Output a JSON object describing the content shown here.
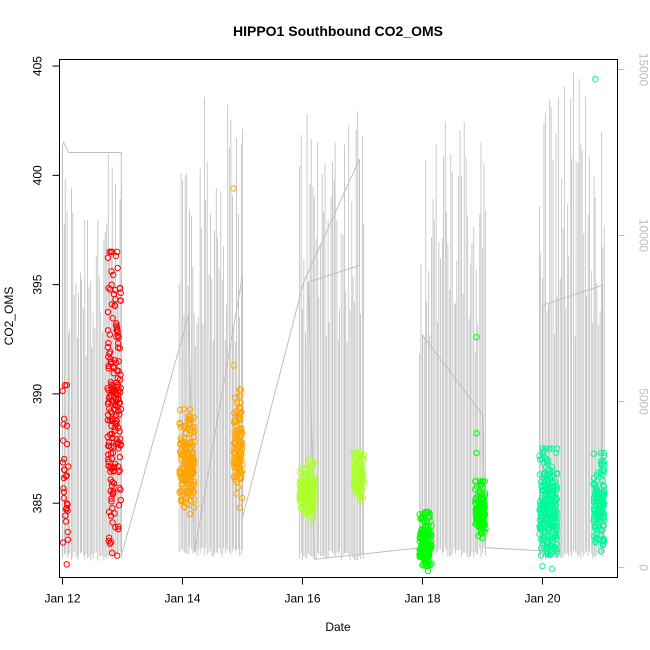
{
  "chart_data": {
    "type": "scatter",
    "title": "HIPPO1 Southbound CO2_OMS",
    "xlabel": "Date",
    "ylabel": "CO2_OMS",
    "x_unit": "days in January 2009 (tick labels Jan 12 ... Jan 20)",
    "xlim": [
      11.95,
      21.25
    ],
    "ylim": [
      381.6,
      405.3
    ],
    "x_ticks": [
      {
        "value": 12,
        "label": "Jan 12"
      },
      {
        "value": 14,
        "label": "Jan 14"
      },
      {
        "value": 16,
        "label": "Jan 16"
      },
      {
        "value": 18,
        "label": "Jan 18"
      },
      {
        "value": 20,
        "label": "Jan 20"
      }
    ],
    "y_ticks": [
      385,
      390,
      395,
      400,
      405
    ],
    "right_axis": {
      "label": "",
      "ylim": [
        -300,
        15300
      ],
      "ticks": [
        0,
        5000,
        10000,
        15000
      ],
      "color": "#bebebe"
    },
    "grid": false,
    "legend": "none",
    "series": [
      {
        "color": "#ff0000",
        "clusters": [
          {
            "x": [
              12.0,
              12.1
            ],
            "y_range": [
              382.2,
              390.4
            ],
            "density": 0.35
          },
          {
            "x": [
              12.75,
              12.98
            ],
            "y_range": [
              382.6,
              396.5
            ],
            "density": 1.0
          }
        ],
        "outliers": []
      },
      {
        "color": "#ffa500",
        "clusters": [
          {
            "x": [
              13.95,
              14.2
            ],
            "y_range": [
              384.5,
              389.3
            ],
            "density": 0.9
          },
          {
            "x": [
              14.85,
              15.0
            ],
            "y_range": [
              384.8,
              390.2
            ],
            "density": 0.9
          }
        ],
        "outliers": [
          {
            "x": 14.85,
            "y": 399.4
          },
          {
            "x": 14.85,
            "y": 391.3
          }
        ]
      },
      {
        "color": "#adff2f",
        "clusters": [
          {
            "x": [
              15.95,
              16.2
            ],
            "y_range": [
              384.2,
              387.0
            ],
            "density": 0.9
          },
          {
            "x": [
              16.85,
              17.02
            ],
            "y_range": [
              385.1,
              387.3
            ],
            "density": 0.9
          }
        ],
        "outliers": []
      },
      {
        "color": "#00ff00",
        "clusters": [
          {
            "x": [
              17.95,
              18.15
            ],
            "y_range": [
              381.9,
              384.6
            ],
            "density": 0.9
          },
          {
            "x": [
              18.88,
              19.05
            ],
            "y_range": [
              383.4,
              386.0
            ],
            "density": 0.9
          }
        ],
        "outliers": [
          {
            "x": 18.9,
            "y": 392.6
          },
          {
            "x": 18.9,
            "y": 388.2
          },
          {
            "x": 18.9,
            "y": 387.3
          }
        ]
      },
      {
        "color": "#00fa9a",
        "clusters": [
          {
            "x": [
              19.95,
              20.25
            ],
            "y_range": [
              382.0,
              387.5
            ],
            "density": 1.0
          },
          {
            "x": [
              20.85,
              21.03
            ],
            "y_range": [
              382.8,
              387.3
            ],
            "density": 0.9
          }
        ],
        "outliers": [
          {
            "x": 20.88,
            "y": 404.4
          }
        ]
      }
    ],
    "altitude_trace": {
      "color": "#bebebe",
      "axis": "right",
      "profiles": [
        {
          "x": [
            12.0,
            12.98
          ],
          "low": 200,
          "high": 12500
        },
        {
          "x": [
            13.95,
            15.0
          ],
          "low": 300,
          "high": 14300
        },
        {
          "x": [
            15.95,
            17.02
          ],
          "low": 200,
          "high": 14400
        },
        {
          "x": [
            17.95,
            19.05
          ],
          "low": 300,
          "high": 13700
        },
        {
          "x": [
            19.95,
            21.03
          ],
          "low": 200,
          "high": 15000
        }
      ],
      "path": [
        [
          12.0,
          260
        ],
        [
          12.0,
          12700
        ],
        [
          12.02,
          12800
        ],
        [
          12.1,
          12500
        ],
        [
          12.98,
          12500
        ],
        [
          12.98,
          360
        ],
        [
          14.1,
          7600
        ],
        [
          14.2,
          450
        ],
        [
          15.0,
          8800
        ],
        [
          15.0,
          1500
        ],
        [
          16.02,
          8600
        ],
        [
          16.95,
          12300
        ],
        [
          16.95,
          9100
        ],
        [
          16.1,
          8600
        ],
        [
          16.2,
          250
        ],
        [
          18.0,
          600
        ],
        [
          18.0,
          7000
        ],
        [
          19.0,
          4600
        ],
        [
          19.05,
          600
        ],
        [
          20.0,
          500
        ],
        [
          20.0,
          7900
        ],
        [
          21.0,
          8500
        ],
        [
          21.0,
          2700
        ]
      ]
    }
  }
}
